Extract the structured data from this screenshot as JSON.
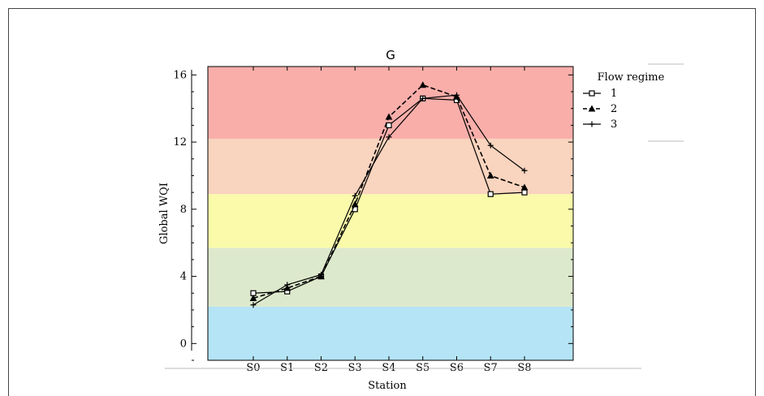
{
  "chart_data": {
    "type": "line",
    "title": "G",
    "xlabel": "Station",
    "ylabel": "Global WQI",
    "categories": [
      "S0",
      "S1",
      "S2",
      "S3",
      "S4",
      "S5",
      "S6",
      "S7",
      "S8"
    ],
    "ylim": [
      -1,
      16.5
    ],
    "yticks": [
      0,
      4,
      8,
      12,
      16
    ],
    "legend": {
      "title": "Flow regime",
      "placement": "right"
    },
    "bands": [
      {
        "from": -1,
        "to": 2.2,
        "color": "#b4e4f5"
      },
      {
        "from": 2.2,
        "to": 5.7,
        "color": "#dde9cc"
      },
      {
        "from": 5.7,
        "to": 8.9,
        "color": "#fafaaa"
      },
      {
        "from": 8.9,
        "to": 12.2,
        "color": "#f9d4be"
      },
      {
        "from": 12.2,
        "to": 16.5,
        "color": "#f9aeaa"
      }
    ],
    "series": [
      {
        "name": "1",
        "marker": "square",
        "dash": "solid",
        "values": [
          3.0,
          3.1,
          4.0,
          8.0,
          13.0,
          14.6,
          14.5,
          8.9,
          9.0
        ]
      },
      {
        "name": "2",
        "marker": "triangle",
        "dash": "dashed",
        "values": [
          2.7,
          3.3,
          4.0,
          8.3,
          13.5,
          15.4,
          14.7,
          10.0,
          9.3
        ]
      },
      {
        "name": "3",
        "marker": "plus",
        "dash": "solid",
        "values": [
          2.3,
          3.5,
          4.1,
          8.8,
          12.3,
          14.6,
          14.8,
          11.8,
          10.3
        ]
      }
    ],
    "grid": false
  }
}
